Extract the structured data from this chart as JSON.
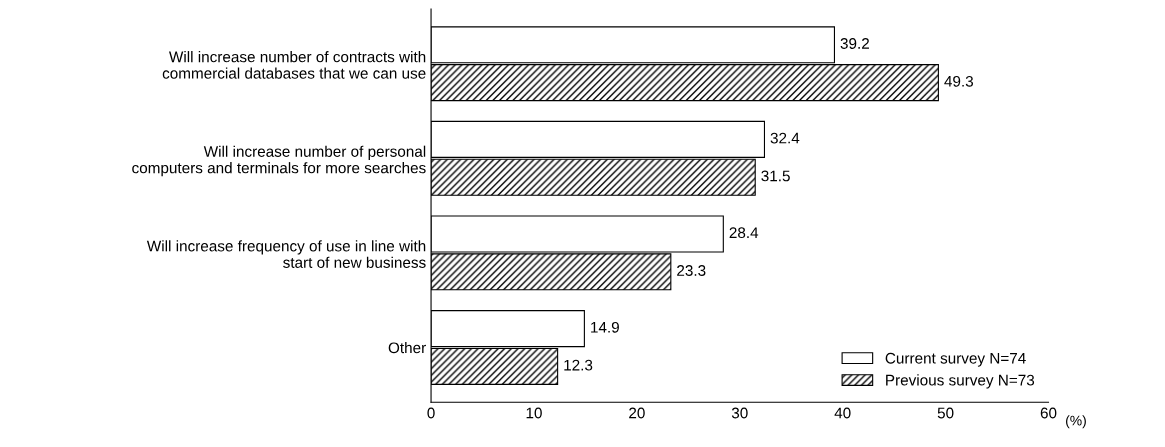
{
  "chart_data": {
    "type": "bar",
    "orientation": "horizontal",
    "xlabel": "(%)",
    "categories": [
      "Will increase number of contracts with\ncommercial databases that we can use",
      "Will increase number of personal\ncomputers and terminals for more searches",
      "Will increase frequency of use in line with\nstart of new business",
      "Other"
    ],
    "series": [
      {
        "name": "Current survey N=74",
        "color": "#ffffff",
        "values": [
          39.2,
          32.4,
          28.4,
          14.9
        ]
      },
      {
        "name": "Previous survey N=73",
        "color": "#000000",
        "values": [
          49.3,
          31.5,
          23.3,
          12.3
        ]
      }
    ],
    "xlim": [
      0,
      60
    ],
    "xticks": [
      0,
      10,
      20,
      30,
      40,
      50,
      60
    ],
    "data_labels": true,
    "grid": false,
    "legend": "bottom right"
  }
}
